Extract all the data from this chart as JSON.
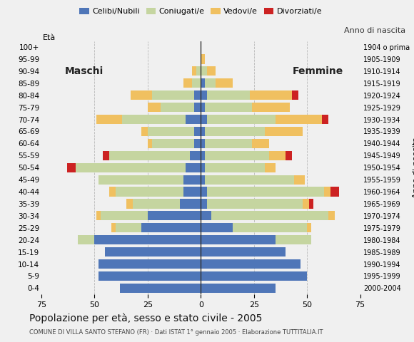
{
  "age_groups_bottom_to_top": [
    "0-4",
    "5-9",
    "10-14",
    "15-19",
    "20-24",
    "25-29",
    "30-34",
    "35-39",
    "40-44",
    "45-49",
    "50-54",
    "55-59",
    "60-64",
    "65-69",
    "70-74",
    "75-79",
    "80-84",
    "85-89",
    "90-94",
    "95-99",
    "100+"
  ],
  "birth_years_bottom_to_top": [
    "2000-2004",
    "1995-1999",
    "1990-1994",
    "1985-1989",
    "1980-1984",
    "1975-1979",
    "1970-1974",
    "1965-1969",
    "1960-1964",
    "1955-1959",
    "1950-1954",
    "1945-1949",
    "1940-1944",
    "1935-1939",
    "1930-1934",
    "1925-1929",
    "1920-1924",
    "1915-1919",
    "1910-1914",
    "1905-1909",
    "1904 o prima"
  ],
  "males": {
    "celibe": [
      38,
      48,
      48,
      45,
      50,
      28,
      25,
      10,
      8,
      8,
      7,
      5,
      3,
      3,
      7,
      3,
      3,
      0,
      0,
      0,
      0
    ],
    "coniugato": [
      0,
      0,
      0,
      0,
      8,
      12,
      22,
      22,
      32,
      40,
      52,
      38,
      20,
      22,
      30,
      16,
      20,
      4,
      2,
      0,
      0
    ],
    "vedovo": [
      0,
      0,
      0,
      0,
      0,
      2,
      2,
      3,
      3,
      0,
      0,
      0,
      2,
      3,
      12,
      6,
      10,
      4,
      2,
      0,
      0
    ],
    "divorziato": [
      0,
      0,
      0,
      0,
      0,
      0,
      0,
      0,
      0,
      0,
      4,
      3,
      0,
      0,
      0,
      0,
      0,
      0,
      0,
      0,
      0
    ]
  },
  "females": {
    "nubile": [
      35,
      50,
      47,
      40,
      35,
      15,
      5,
      3,
      3,
      2,
      2,
      2,
      2,
      2,
      3,
      2,
      3,
      2,
      0,
      0,
      0
    ],
    "coniugata": [
      0,
      0,
      0,
      0,
      17,
      35,
      55,
      45,
      55,
      42,
      28,
      30,
      22,
      28,
      32,
      22,
      20,
      5,
      3,
      0,
      0
    ],
    "vedova": [
      0,
      0,
      0,
      0,
      0,
      2,
      3,
      3,
      3,
      5,
      5,
      8,
      8,
      18,
      22,
      18,
      20,
      8,
      4,
      2,
      0
    ],
    "divorziata": [
      0,
      0,
      0,
      0,
      0,
      0,
      0,
      2,
      4,
      0,
      0,
      3,
      0,
      0,
      3,
      0,
      3,
      0,
      0,
      0,
      0
    ]
  },
  "colors": {
    "celibe_nubile": "#4f76b8",
    "coniugato_a": "#c5d5a0",
    "vedovo_a": "#f0c060",
    "divorziato_a": "#cc2222"
  },
  "xlim": 75,
  "title": "Popolazione per età, sesso e stato civile - 2005",
  "subtitle": "COMUNE DI VILLA SANTO STEFANO (FR) · Dati ISTAT 1° gennaio 2005 · Elaborazione TUTTITALIA.IT",
  "legend_labels": [
    "Celibi/Nubili",
    "Coniugati/e",
    "Vedovi/e",
    "Divorziati/e"
  ],
  "background_color": "#f0f0f0",
  "grid_color": "#aaaaaa"
}
